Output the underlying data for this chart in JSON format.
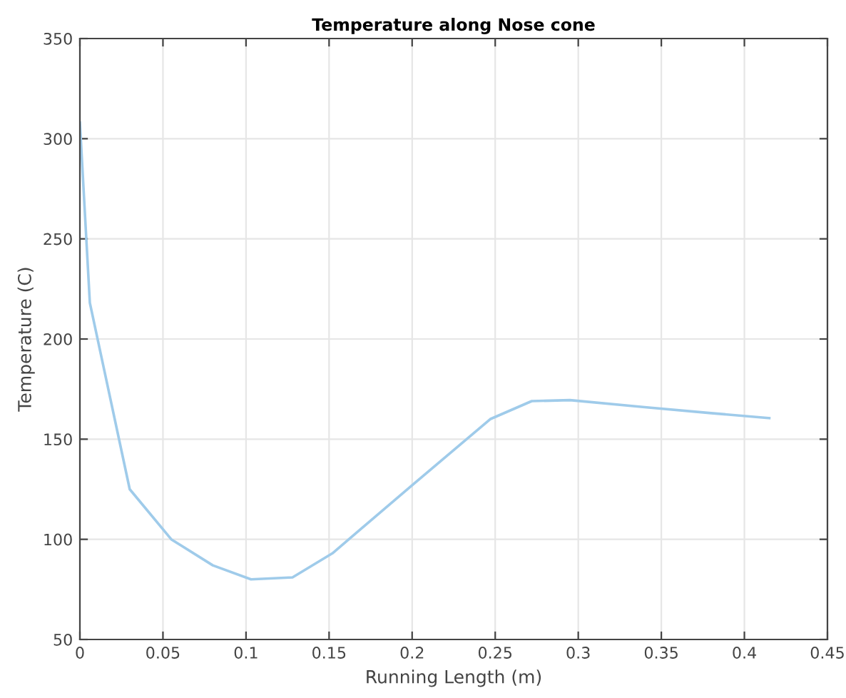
{
  "chart_data": {
    "type": "line",
    "title": "Temperature along Nose cone",
    "xlabel": "Running Length (m)",
    "ylabel": "Temperature (C)",
    "x": [
      0,
      0.006,
      0.03,
      0.055,
      0.08,
      0.103,
      0.128,
      0.152,
      0.2,
      0.247,
      0.272,
      0.295,
      0.34,
      0.38,
      0.415
    ],
    "series": [
      {
        "color": "#9fcbea",
        "values": [
          308,
          218,
          125,
          100,
          87,
          80,
          81,
          93,
          127,
          160,
          169,
          169.5,
          166,
          163,
          160.5
        ]
      }
    ],
    "xlim": [
      0,
      0.45
    ],
    "xticks": [
      0,
      0.05,
      0.1,
      0.15,
      0.2,
      0.25,
      0.3,
      0.35,
      0.4,
      0.45
    ],
    "ylim": [
      50,
      350
    ],
    "yticks": [
      50,
      100,
      150,
      200,
      250,
      300,
      350
    ],
    "grid": true,
    "marker": "none",
    "line_style": "solid"
  }
}
